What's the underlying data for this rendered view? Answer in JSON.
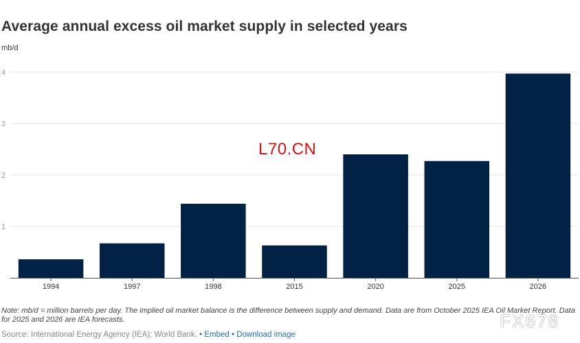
{
  "chart_data": {
    "type": "bar",
    "title": "Average annual excess oil market supply in selected years",
    "ylabel": "mb/d",
    "xlabel": "",
    "categories": [
      "1994",
      "1997",
      "1998",
      "2015",
      "2020",
      "2025",
      "2026"
    ],
    "values": [
      0.36,
      0.67,
      1.44,
      0.63,
      2.4,
      2.27,
      3.97
    ],
    "ylim": [
      0,
      4
    ],
    "yticks": [
      1,
      2,
      3,
      4
    ],
    "bar_color": "#012145",
    "grid": true
  },
  "watermark": "L70.CN",
  "note": "Note: mb/d = million barrels per day. The implied oil market balance is the difference between supply and demand. Data are from October 2025 IEA Oil Market Report. Data for 2025 and 2026 are IEA forecasts.",
  "source": {
    "text": "Source: International Energy Agency (IEA); World Bank.",
    "embed_label": "Embed",
    "download_label": "Download image"
  },
  "brand": "FX678"
}
